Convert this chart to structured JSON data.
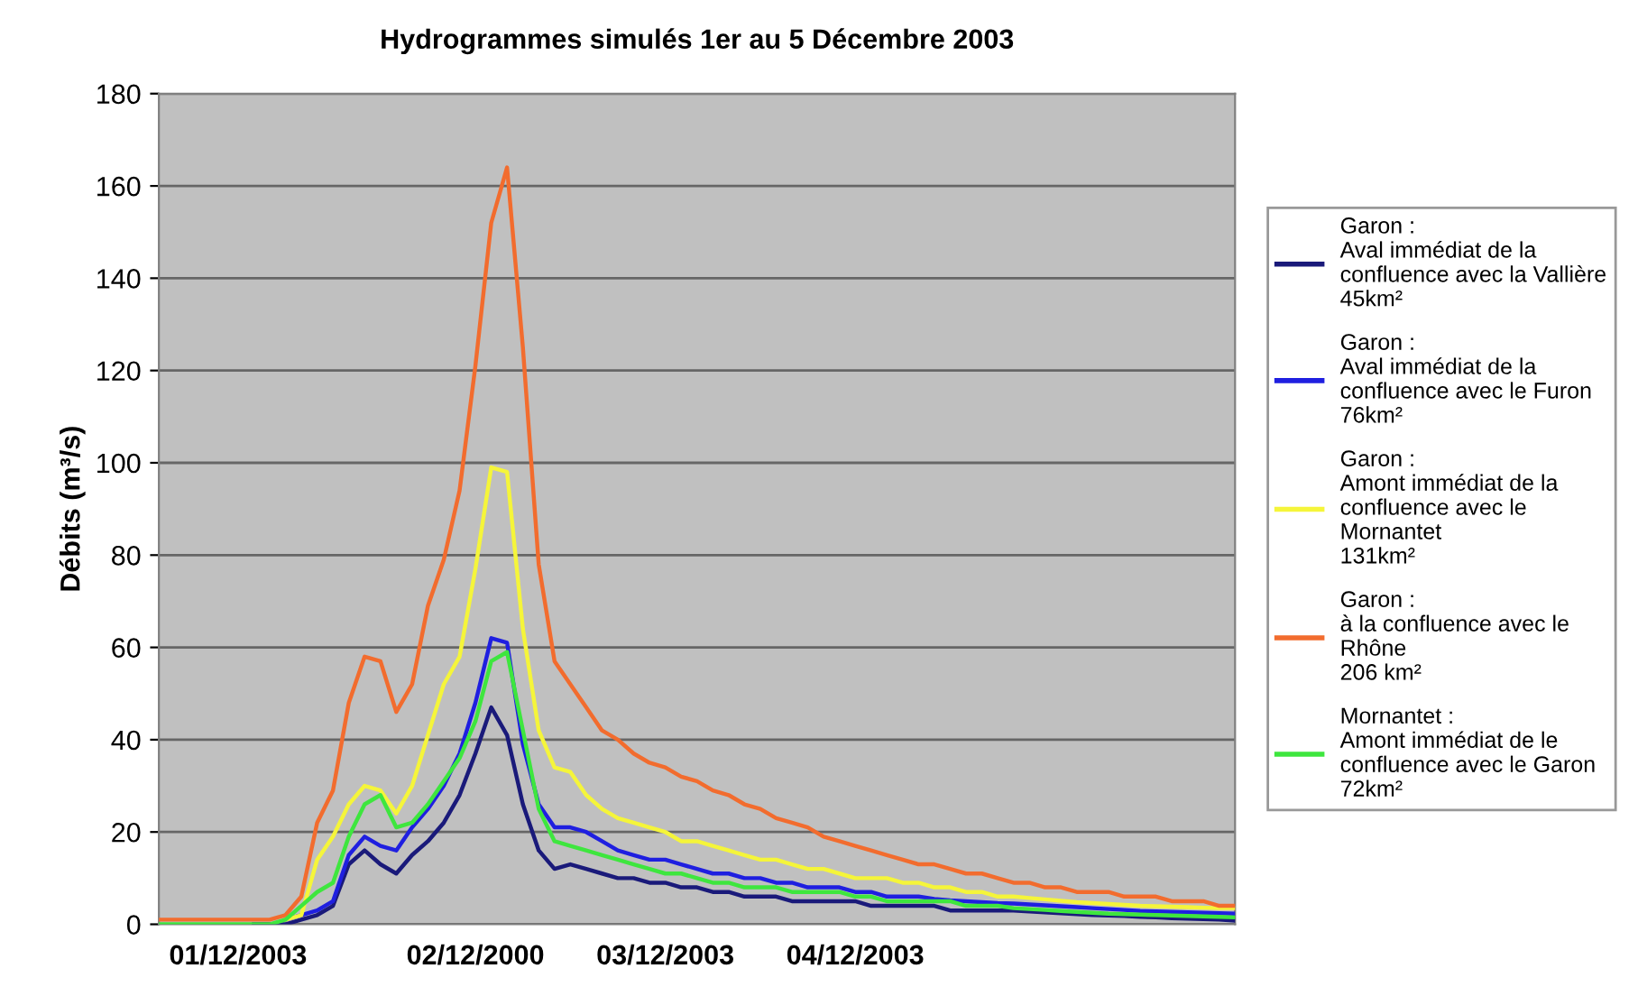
{
  "chart_data": {
    "type": "line",
    "title": "Hydrogrammes simulés 1er au 5 Décembre 2003",
    "ylabel": "Débits (m³/s)",
    "categories": [
      null,
      null,
      null,
      null,
      null,
      "01/12/2003",
      null,
      null,
      null,
      null,
      null,
      null,
      null,
      null,
      null,
      null,
      null,
      null,
      null,
      null,
      "02/12/2000",
      null,
      null,
      null,
      null,
      null,
      null,
      null,
      null,
      null,
      null,
      null,
      "03/12/2003",
      null,
      null,
      null,
      null,
      null,
      null,
      null,
      null,
      null,
      null,
      null,
      "04/12/2003",
      null,
      null,
      null,
      null,
      null,
      null,
      null,
      null,
      null,
      null,
      null,
      null,
      null,
      null,
      null,
      null,
      null,
      null,
      null,
      null,
      null,
      null,
      null,
      null
    ],
    "ylim": [
      0,
      180
    ],
    "yticks": [
      0,
      20,
      40,
      60,
      80,
      100,
      120,
      140,
      160,
      180
    ],
    "grid": "y",
    "legend": "right",
    "marker": "none",
    "line_style": "solid",
    "series": [
      {
        "name": "Garon :\nAval immédiat de la\nconfluence avec la Vallière\n45km²",
        "color": "#1a1a7a",
        "values": [
          null,
          null,
          null,
          null,
          null,
          null,
          0,
          0,
          0,
          1,
          2,
          4,
          13,
          16,
          13,
          11,
          15,
          18,
          22,
          28,
          37,
          47,
          41,
          26,
          16,
          12,
          13,
          12,
          11,
          10,
          10,
          9,
          9,
          8,
          8,
          7,
          7,
          6,
          6,
          6,
          5,
          5,
          5,
          5,
          5,
          4,
          4,
          4,
          4,
          4,
          3,
          3,
          3,
          3,
          3,
          2.8,
          2.6,
          2.4,
          2.2,
          2.0,
          1.9,
          1.8,
          1.6,
          1.5,
          1.3,
          1.2,
          1.1,
          1.0,
          0.8
        ]
      },
      {
        "name": "Garon :\nAval immédiat de la\nconfluence avec le Furon\n76km²",
        "color": "#1f1fe0",
        "values": [
          null,
          null,
          null,
          null,
          null,
          null,
          null,
          null,
          1,
          2,
          3,
          5,
          15,
          19,
          17,
          16,
          21,
          25,
          30,
          37,
          48,
          62,
          61,
          39,
          26,
          21,
          21,
          20,
          18,
          16,
          15,
          14,
          14,
          13,
          12,
          11,
          11,
          10,
          10,
          9,
          9,
          8,
          8,
          8,
          7,
          7,
          6,
          6,
          6,
          5.5,
          5.2,
          5,
          4.8,
          4.6,
          4.5,
          4.3,
          4.1,
          3.9,
          3.7,
          3.5,
          3.3,
          3.1,
          2.9,
          2.8,
          2.7,
          2.6,
          2.5,
          2.4,
          2.3
        ]
      },
      {
        "name": "Garon :\nAmont immédiat de la\nconfluence avec le\nMornantet\n131km²",
        "color": "#f5f53a",
        "values": [
          null,
          null,
          null,
          null,
          null,
          null,
          null,
          null,
          1,
          2,
          14,
          19,
          26,
          30,
          29,
          24,
          30,
          41,
          52,
          58,
          77,
          99,
          98,
          64,
          42,
          34,
          33,
          28,
          25,
          23,
          22,
          21,
          20,
          18,
          18,
          17,
          16,
          15,
          14,
          14,
          13,
          12,
          12,
          11,
          10,
          10,
          10,
          9,
          9,
          8,
          8,
          7,
          7,
          6,
          6,
          5.7,
          5.4,
          5.1,
          4.8,
          4.6,
          4.4,
          4.2,
          4.0,
          3.9,
          3.8,
          3.7,
          3.6,
          3.5,
          3.5
        ]
      },
      {
        "name": "Garon :\nà la confluence avec le\nRhône\n206 km²",
        "color": "#f26c2e",
        "values": [
          1,
          1,
          1,
          1,
          1,
          1,
          1,
          1,
          2,
          6,
          22,
          29,
          48,
          58,
          57,
          46,
          52,
          69,
          79,
          94,
          121,
          152,
          164,
          125,
          78,
          57,
          52,
          47,
          42,
          40,
          37,
          35,
          34,
          32,
          31,
          29,
          28,
          26,
          25,
          23,
          22,
          21,
          19,
          18,
          17,
          16,
          15,
          14,
          13,
          13,
          12,
          11,
          11,
          10,
          9,
          9,
          8,
          8,
          7,
          7,
          7,
          6,
          6,
          6,
          5,
          5,
          5,
          4,
          4
        ]
      },
      {
        "name": "Mornantet :\nAmont immédiat de le\nconfluence avec le Garon\n72km²",
        "color": "#3ee63e",
        "values": [
          0,
          0,
          0,
          0,
          0,
          0,
          0,
          0,
          1,
          4,
          7,
          9,
          19,
          26,
          28,
          21,
          22,
          26,
          31,
          36,
          44,
          57,
          59,
          42,
          25,
          18,
          17,
          16,
          15,
          14,
          13,
          12,
          11,
          11,
          10,
          9,
          9,
          8,
          8,
          8,
          7,
          7,
          7,
          7,
          6,
          6,
          5,
          5,
          5,
          5,
          5,
          4,
          4,
          4,
          3.5,
          3.3,
          3.1,
          2.9,
          2.7,
          2.5,
          2.3,
          2.2,
          2.1,
          2.0,
          1.9,
          1.8,
          1.7,
          1.6,
          1.5
        ]
      }
    ]
  }
}
